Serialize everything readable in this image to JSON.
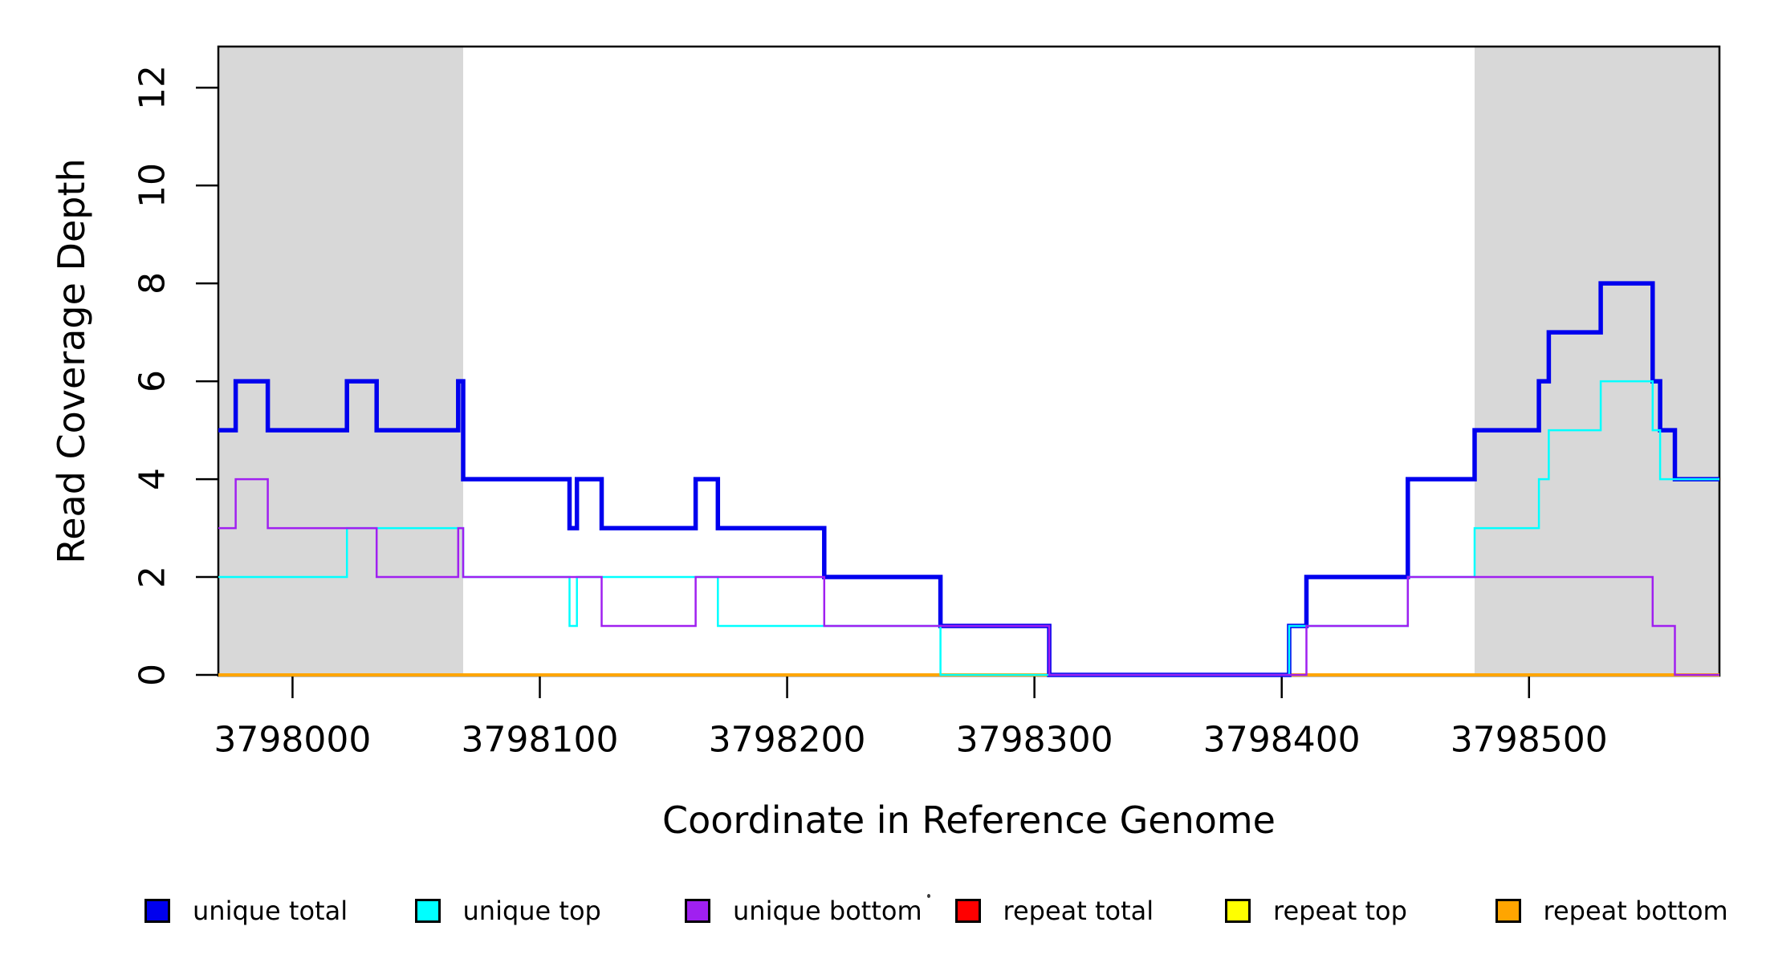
{
  "figure": {
    "background": "#ffffff",
    "text_color": "#000000"
  },
  "chart_data": {
    "type": "line",
    "subtype": "step-coverage-plot",
    "title": "",
    "xlabel": "Coordinate in Reference Genome",
    "ylabel": "Read Coverage Depth",
    "xlim": [
      3797970,
      3798577
    ],
    "ylim": [
      0,
      12.84
    ],
    "grid": false,
    "x_ticks": [
      {
        "v": 3798000,
        "label": "3798000"
      },
      {
        "v": 3798100,
        "label": "3798100"
      },
      {
        "v": 3798200,
        "label": "3798200"
      },
      {
        "v": 3798300,
        "label": "3798300"
      },
      {
        "v": 3798400,
        "label": "3798400"
      },
      {
        "v": 3798500,
        "label": "3798500"
      }
    ],
    "y_ticks": [
      {
        "v": 0,
        "label": "0"
      },
      {
        "v": 2,
        "label": "2"
      },
      {
        "v": 4,
        "label": "4"
      },
      {
        "v": 6,
        "label": "6"
      },
      {
        "v": 8,
        "label": "8"
      },
      {
        "v": 10,
        "label": "10"
      },
      {
        "v": 12,
        "label": "12"
      }
    ],
    "shaded_regions": [
      {
        "x0": 3797970,
        "x1": 3798069,
        "color": "#d8d8d8"
      },
      {
        "x0": 3798478,
        "x1": 3798577,
        "color": "#d8d8d8"
      }
    ],
    "series": [
      {
        "name": "unique total",
        "color": "#0000ee",
        "line_width": 5.5,
        "steps": [
          [
            3797970,
            5
          ],
          [
            3797977,
            6
          ],
          [
            3797990,
            5
          ],
          [
            3798022,
            6
          ],
          [
            3798034,
            5
          ],
          [
            3798067,
            6
          ],
          [
            3798069,
            4
          ],
          [
            3798112,
            3
          ],
          [
            3798115,
            4
          ],
          [
            3798125,
            3
          ],
          [
            3798163,
            4
          ],
          [
            3798172,
            3
          ],
          [
            3798215,
            2
          ],
          [
            3798262,
            1
          ],
          [
            3798306,
            0
          ],
          [
            3798403,
            1
          ],
          [
            3798410,
            2
          ],
          [
            3798451,
            4
          ],
          [
            3798478,
            5
          ],
          [
            3798504,
            6
          ],
          [
            3798508,
            7
          ],
          [
            3798529,
            8
          ],
          [
            3798550,
            6
          ],
          [
            3798553,
            5
          ],
          [
            3798559,
            4
          ],
          [
            3798577,
            4
          ]
        ]
      },
      {
        "name": "unique top",
        "color": "#00ffff",
        "line_width": 2.5,
        "steps": [
          [
            3797970,
            2
          ],
          [
            3798022,
            3
          ],
          [
            3798069,
            2
          ],
          [
            3798112,
            1
          ],
          [
            3798115,
            2
          ],
          [
            3798172,
            1
          ],
          [
            3798262,
            0
          ],
          [
            3798403,
            1
          ],
          [
            3798451,
            2
          ],
          [
            3798478,
            3
          ],
          [
            3798504,
            4
          ],
          [
            3798508,
            5
          ],
          [
            3798529,
            6
          ],
          [
            3798550,
            5
          ],
          [
            3798553,
            4
          ],
          [
            3798577,
            4
          ]
        ]
      },
      {
        "name": "unique bottom",
        "color": "#a020f0",
        "line_width": 2.5,
        "steps": [
          [
            3797970,
            3
          ],
          [
            3797977,
            4
          ],
          [
            3797990,
            3
          ],
          [
            3798034,
            2
          ],
          [
            3798067,
            3
          ],
          [
            3798069,
            2
          ],
          [
            3798125,
            1
          ],
          [
            3798163,
            2
          ],
          [
            3798215,
            1
          ],
          [
            3798306,
            0
          ],
          [
            3798410,
            1
          ],
          [
            3798451,
            2
          ],
          [
            3798550,
            1
          ],
          [
            3798559,
            0
          ],
          [
            3798577,
            0
          ]
        ]
      },
      {
        "name": "repeat total",
        "color": "#ff0000",
        "line_width": 2.5,
        "steps": [
          [
            3797970,
            0
          ],
          [
            3798577,
            0
          ]
        ]
      },
      {
        "name": "repeat top",
        "color": "#ffff00",
        "line_width": 2.5,
        "steps": [
          [
            3797970,
            0
          ],
          [
            3798577,
            0
          ]
        ]
      },
      {
        "name": "repeat bottom",
        "color": "#ffa500",
        "line_width": 4,
        "steps": [
          [
            3797970,
            0
          ],
          [
            3798577,
            0
          ]
        ]
      }
    ],
    "draw_order": [
      "repeat total",
      "repeat top",
      "repeat bottom",
      "unique total",
      "unique top",
      "unique bottom"
    ],
    "legend": [
      {
        "label": "unique total",
        "color": "#0000ee"
      },
      {
        "label": "unique top",
        "color": "#00ffff"
      },
      {
        "label": "unique bottom",
        "color": "#a020f0"
      },
      {
        "label": "repeat total",
        "color": "#ff0000"
      },
      {
        "label": "repeat top",
        "color": "#ffff00"
      },
      {
        "label": "repeat bottom",
        "color": "#ffa500"
      }
    ],
    "legend_position": "bottom"
  }
}
